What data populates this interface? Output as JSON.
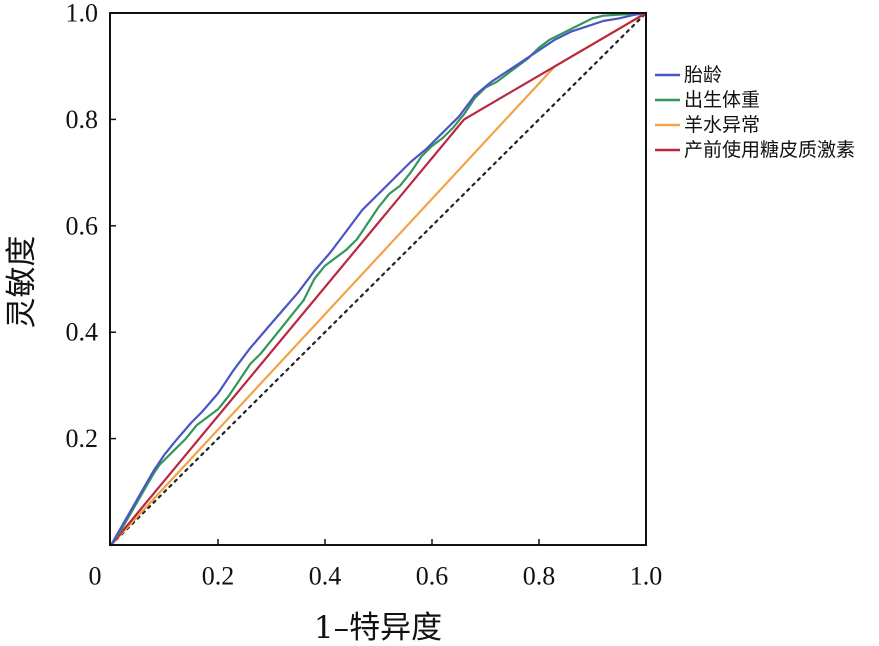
{
  "chart_data": {
    "type": "line",
    "xlabel": "1–特异度",
    "ylabel": "灵敏度",
    "xlim": [
      0,
      1
    ],
    "ylim": [
      0,
      1
    ],
    "x_tick_labels": [
      "0",
      "0.2",
      "0.4",
      "0.6",
      "0.8",
      "1.0"
    ],
    "y_tick_labels": [
      "0.2",
      "0.4",
      "0.6",
      "0.8",
      "1.0"
    ],
    "grid": false,
    "legend_position": "right",
    "reference_line": {
      "style": "dotted",
      "color": "#222222",
      "points": [
        [
          0,
          0
        ],
        [
          1,
          1
        ]
      ]
    },
    "series": [
      {
        "name": "胎龄",
        "color": "#4a55c6",
        "points": [
          [
            0,
            0
          ],
          [
            0.02,
            0.035
          ],
          [
            0.04,
            0.07
          ],
          [
            0.06,
            0.105
          ],
          [
            0.08,
            0.14
          ],
          [
            0.1,
            0.17
          ],
          [
            0.12,
            0.195
          ],
          [
            0.15,
            0.23
          ],
          [
            0.17,
            0.25
          ],
          [
            0.2,
            0.285
          ],
          [
            0.23,
            0.33
          ],
          [
            0.26,
            0.37
          ],
          [
            0.29,
            0.405
          ],
          [
            0.32,
            0.44
          ],
          [
            0.35,
            0.475
          ],
          [
            0.38,
            0.515
          ],
          [
            0.41,
            0.55
          ],
          [
            0.44,
            0.59
          ],
          [
            0.47,
            0.63
          ],
          [
            0.5,
            0.66
          ],
          [
            0.53,
            0.69
          ],
          [
            0.56,
            0.72
          ],
          [
            0.59,
            0.745
          ],
          [
            0.62,
            0.775
          ],
          [
            0.65,
            0.805
          ],
          [
            0.68,
            0.845
          ],
          [
            0.71,
            0.87
          ],
          [
            0.74,
            0.89
          ],
          [
            0.77,
            0.91
          ],
          [
            0.8,
            0.93
          ],
          [
            0.83,
            0.95
          ],
          [
            0.86,
            0.965
          ],
          [
            0.89,
            0.975
          ],
          [
            0.92,
            0.985
          ],
          [
            0.95,
            0.99
          ],
          [
            0.98,
            0.997
          ],
          [
            1,
            1
          ]
        ]
      },
      {
        "name": "出生体重",
        "color": "#33975a",
        "points": [
          [
            0,
            0
          ],
          [
            0.02,
            0.03
          ],
          [
            0.04,
            0.065
          ],
          [
            0.06,
            0.1
          ],
          [
            0.08,
            0.135
          ],
          [
            0.09,
            0.15
          ],
          [
            0.1,
            0.16
          ],
          [
            0.12,
            0.18
          ],
          [
            0.14,
            0.2
          ],
          [
            0.16,
            0.225
          ],
          [
            0.18,
            0.24
          ],
          [
            0.2,
            0.255
          ],
          [
            0.22,
            0.28
          ],
          [
            0.24,
            0.31
          ],
          [
            0.26,
            0.34
          ],
          [
            0.28,
            0.36
          ],
          [
            0.3,
            0.385
          ],
          [
            0.32,
            0.41
          ],
          [
            0.34,
            0.435
          ],
          [
            0.36,
            0.46
          ],
          [
            0.38,
            0.5
          ],
          [
            0.4,
            0.525
          ],
          [
            0.42,
            0.54
          ],
          [
            0.44,
            0.555
          ],
          [
            0.46,
            0.575
          ],
          [
            0.48,
            0.605
          ],
          [
            0.5,
            0.635
          ],
          [
            0.52,
            0.66
          ],
          [
            0.54,
            0.675
          ],
          [
            0.56,
            0.7
          ],
          [
            0.58,
            0.73
          ],
          [
            0.6,
            0.75
          ],
          [
            0.62,
            0.765
          ],
          [
            0.64,
            0.785
          ],
          [
            0.66,
            0.81
          ],
          [
            0.68,
            0.84
          ],
          [
            0.7,
            0.86
          ],
          [
            0.72,
            0.87
          ],
          [
            0.74,
            0.885
          ],
          [
            0.76,
            0.9
          ],
          [
            0.78,
            0.915
          ],
          [
            0.8,
            0.935
          ],
          [
            0.82,
            0.95
          ],
          [
            0.84,
            0.96
          ],
          [
            0.86,
            0.97
          ],
          [
            0.88,
            0.98
          ],
          [
            0.9,
            0.99
          ],
          [
            0.92,
            0.995
          ],
          [
            0.95,
            0.997
          ],
          [
            1,
            1
          ]
        ]
      },
      {
        "name": "羊水异常",
        "color": "#f2a346",
        "points": [
          [
            0,
            0
          ],
          [
            0.83,
            0.9
          ],
          [
            1,
            1
          ]
        ]
      },
      {
        "name": "产前使用糖皮质激素",
        "color": "#bb2640",
        "points": [
          [
            0,
            0
          ],
          [
            0.66,
            0.8
          ],
          [
            1,
            1
          ]
        ]
      }
    ]
  }
}
